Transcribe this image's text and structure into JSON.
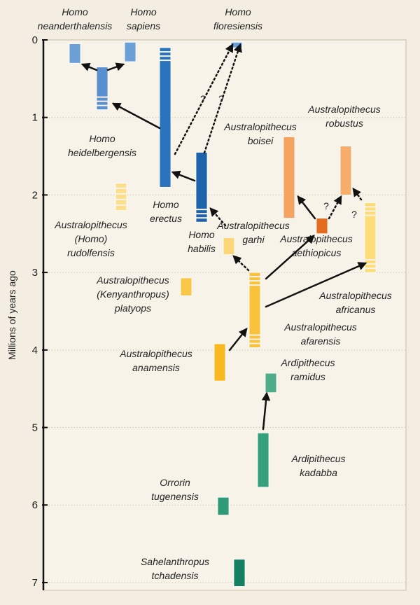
{
  "chart_data": {
    "type": "range",
    "y_label": "Millions of years ago",
    "ylim": [
      0,
      7.1
    ],
    "yticks": [
      0,
      1,
      2,
      3,
      4,
      5,
      6,
      7
    ],
    "grid": true,
    "uncertain_mark": "?",
    "species": [
      {
        "name": [
          "Homo",
          "neanderthalensis"
        ],
        "color": "#6b9fd6",
        "range": [
          0.05,
          0.3
        ]
      },
      {
        "name": [
          "Homo",
          "sapiens"
        ],
        "color": "#6b9fd6",
        "range": [
          0.03,
          0.28
        ]
      },
      {
        "name": [
          "Homo",
          "heidelbergensis"
        ],
        "color": "#5a8fcd",
        "range": [
          0.35,
          0.9
        ]
      },
      {
        "name": [
          "Homo",
          "floresiensis"
        ],
        "color": "#6b9fd6",
        "range": [
          0.03,
          0.1
        ]
      },
      {
        "name": [
          "Homo",
          "erectus"
        ],
        "color": "#2a74bd",
        "range": [
          0.1,
          1.9
        ]
      },
      {
        "name": [
          "Homo",
          "habilis"
        ],
        "color": "#1e63aa",
        "range": [
          1.45,
          2.35
        ]
      },
      {
        "name": [
          "Australopithecus",
          "(Homo)",
          "rudolfensis"
        ],
        "color": "#fbdf8c",
        "range": [
          1.85,
          2.2
        ]
      },
      {
        "name": [
          "Australopithecus",
          "garhi"
        ],
        "color": "#fbd779",
        "range": [
          2.55,
          2.77
        ]
      },
      {
        "name": [
          "Australopithecus",
          "boisei"
        ],
        "color": "#f4a460",
        "range": [
          1.25,
          2.3
        ]
      },
      {
        "name": [
          "Australopithecus",
          "robustus"
        ],
        "color": "#f6ac6a",
        "range": [
          1.37,
          2.0
        ]
      },
      {
        "name": [
          "Australopithecus",
          "aethiopicus"
        ],
        "color": "#e36c1f",
        "range": [
          2.3,
          2.5
        ]
      },
      {
        "name": [
          "Australopithecus",
          "africanus"
        ],
        "color": "#fddc7a",
        "range": [
          2.1,
          3.0
        ]
      },
      {
        "name": [
          "Australopithecus",
          "(Kenyanthropus)",
          "platyops"
        ],
        "color": "#f8c747",
        "range": [
          3.07,
          3.3
        ]
      },
      {
        "name": [
          "Australopithecus",
          "afarensis"
        ],
        "color": "#f9c23c",
        "range": [
          3.0,
          3.97
        ]
      },
      {
        "name": [
          "Australopithecus",
          "anamensis"
        ],
        "color": "#f8b81f",
        "range": [
          3.92,
          4.4
        ]
      },
      {
        "name": [
          "Ardipithecus",
          "ramidus"
        ],
        "color": "#4fae89",
        "range": [
          4.3,
          4.55
        ]
      },
      {
        "name": [
          "Ardipithecus",
          "kadabba"
        ],
        "color": "#36a07c",
        "range": [
          5.07,
          5.77
        ]
      },
      {
        "name": [
          "Orrorin",
          "tugenensis"
        ],
        "color": "#2e9b76",
        "range": [
          5.9,
          6.13
        ]
      },
      {
        "name": [
          "Sahelanthropus",
          "tchadensis"
        ],
        "color": "#138062",
        "range": [
          6.7,
          7.05
        ]
      }
    ]
  }
}
